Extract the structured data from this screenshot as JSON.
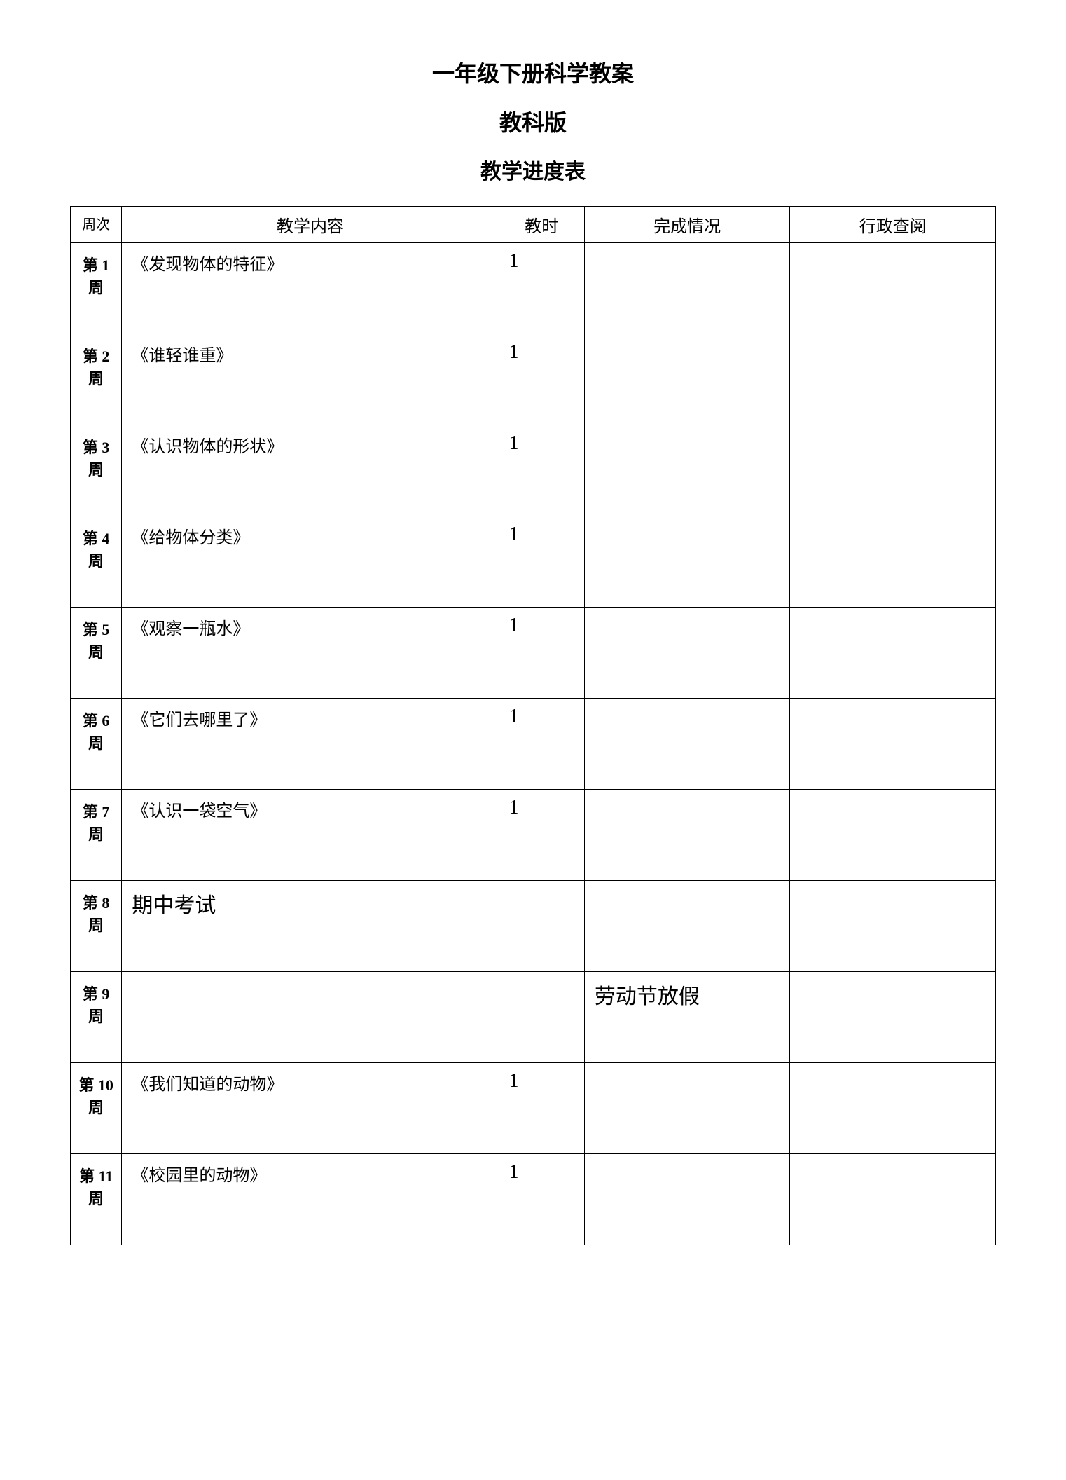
{
  "titles": {
    "main": "一年级下册科学教案",
    "sub": "教科版",
    "table": "教学进度表"
  },
  "headers": {
    "week": "周次",
    "content": "教学内容",
    "hours": "教时",
    "status": "完成情况",
    "review": "行政查阅"
  },
  "rows": [
    {
      "week": "第 1 周",
      "content": "《发现物体的特征》",
      "hours": "1",
      "status": "",
      "review": "",
      "large": false
    },
    {
      "week": "第 2 周",
      "content": "《谁轻谁重》",
      "hours": "1",
      "status": "",
      "review": "",
      "large": false
    },
    {
      "week": "第 3 周",
      "content": "《认识物体的形状》",
      "hours": "1",
      "status": "",
      "review": "",
      "large": false
    },
    {
      "week": "第 4 周",
      "content": "《给物体分类》",
      "hours": "1",
      "status": "",
      "review": "",
      "large": false
    },
    {
      "week": "第 5 周",
      "content": "《观察一瓶水》",
      "hours": "1",
      "status": "",
      "review": "",
      "large": false
    },
    {
      "week": "第 6 周",
      "content": "《它们去哪里了》",
      "hours": "1",
      "status": "",
      "review": "",
      "large": false
    },
    {
      "week": "第 7 周",
      "content": "《认识一袋空气》",
      "hours": "1",
      "status": "",
      "review": "",
      "large": false
    },
    {
      "week": "第 8 周",
      "content": "期中考试",
      "hours": "",
      "status": "",
      "review": "",
      "large": true
    },
    {
      "week": "第 9 周",
      "content": "",
      "hours": "",
      "status": "劳动节放假",
      "review": "",
      "large": false
    },
    {
      "week": "第 10 周",
      "content": "《我们知道的动物》",
      "hours": "1",
      "status": "",
      "review": "",
      "large": false
    },
    {
      "week": "第 11 周",
      "content": "《校园里的动物》",
      "hours": "1",
      "status": "",
      "review": "",
      "large": false
    }
  ],
  "style": {
    "border_color": "#000000",
    "background_color": "#ffffff",
    "title_fontsize": 32,
    "header_fontsize": 24,
    "cell_fontsize": 24,
    "large_fontsize": 30,
    "hours_fontsize": 28
  }
}
